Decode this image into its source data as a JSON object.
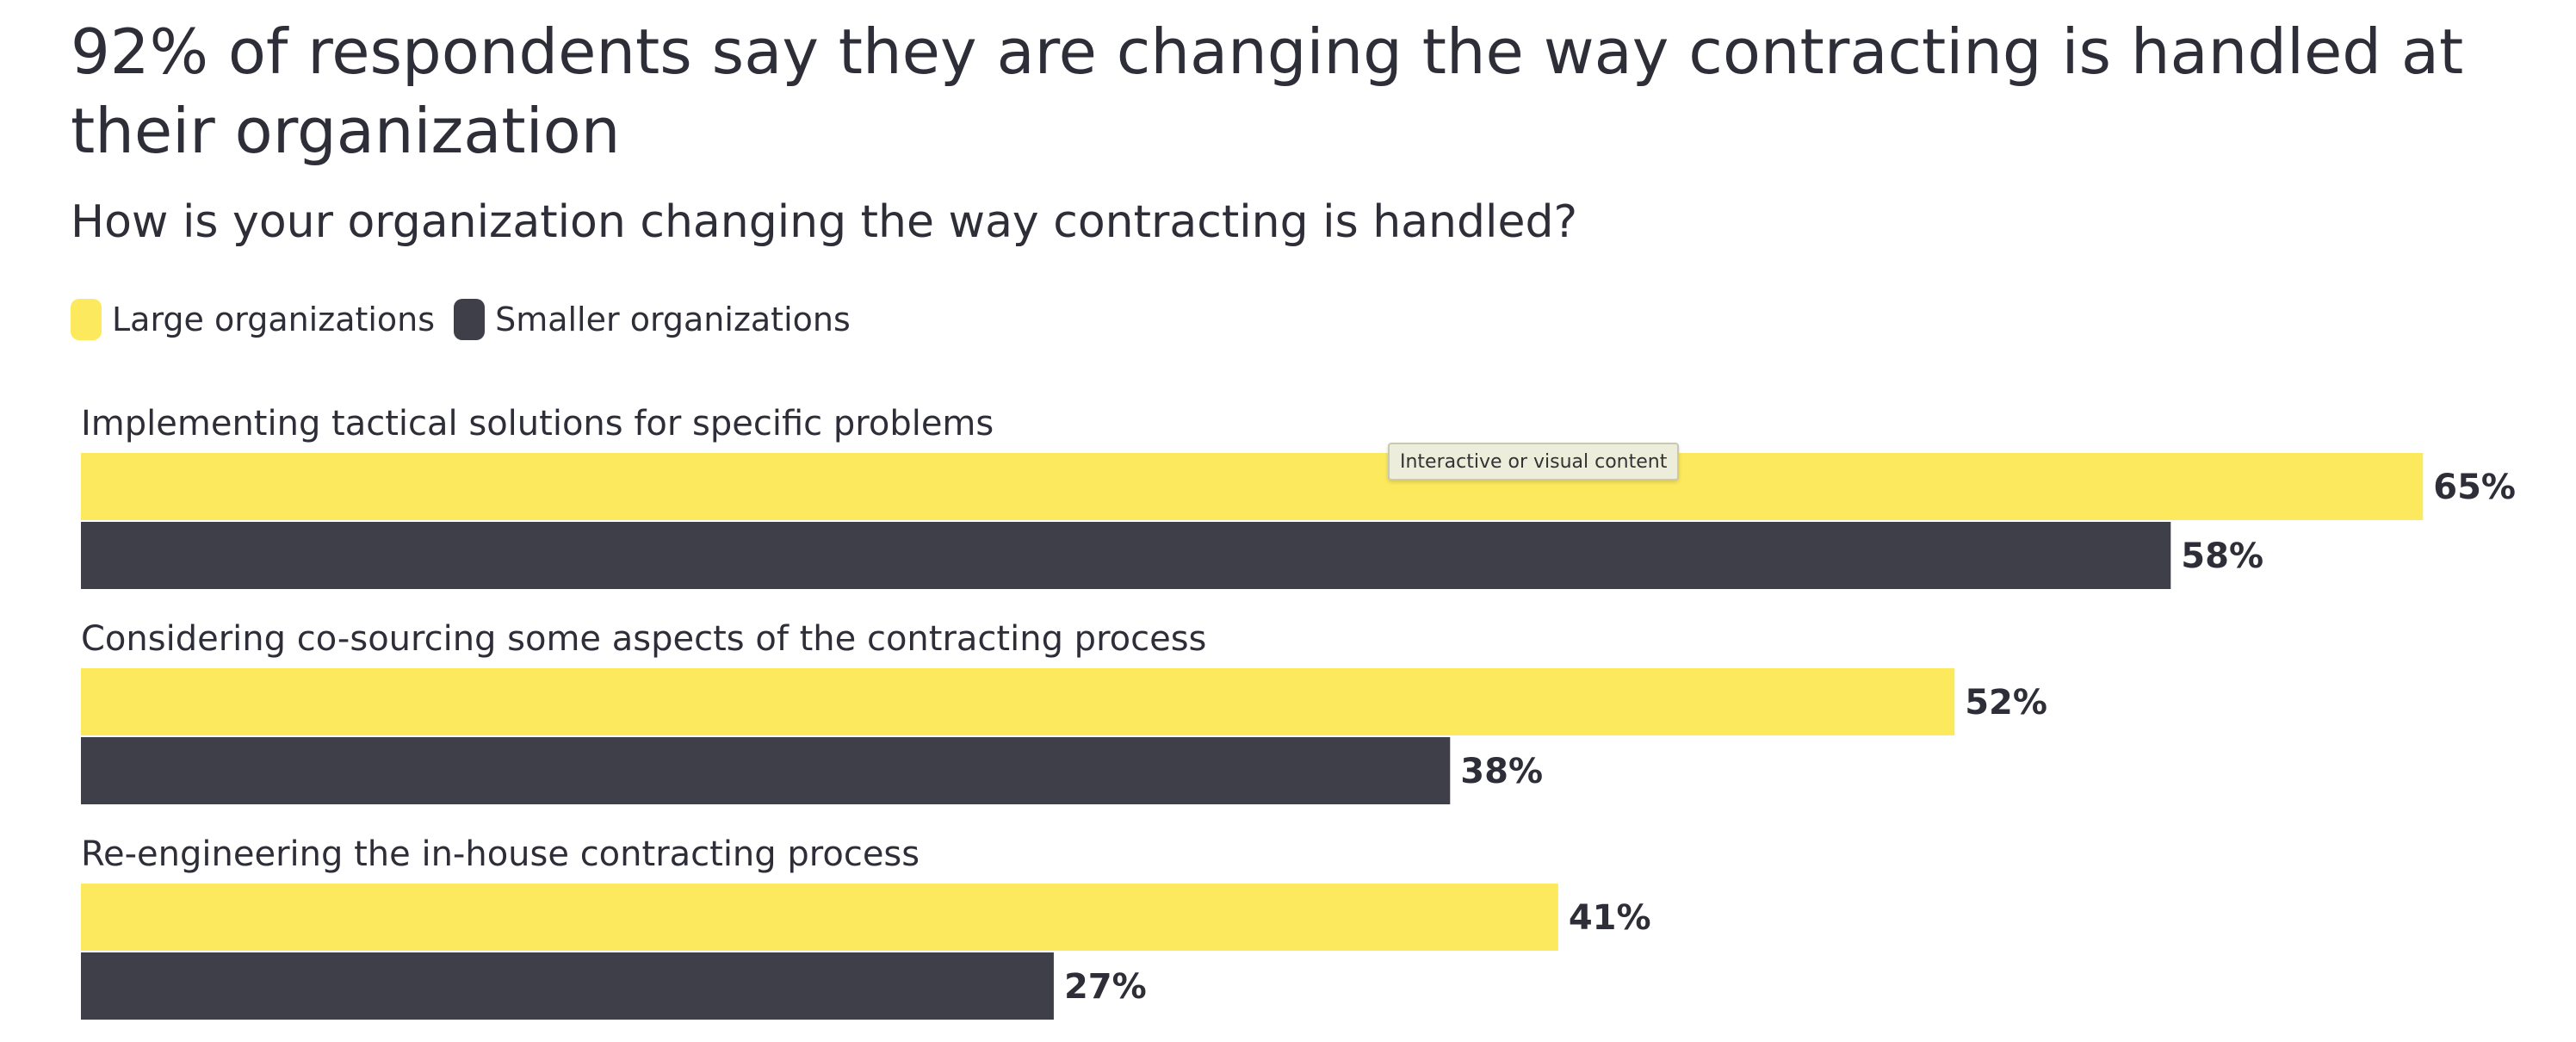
{
  "page": {
    "title": "92% of respondents say they are changing the way contracting is handled at their organization",
    "subtitle": "How is your organization changing the way contracting is handled?",
    "tooltip": "Interactive or visual content"
  },
  "colors": {
    "large": "#fce95e",
    "smaller": "#3f3f49",
    "text": "#2e2e38"
  },
  "legend": {
    "large_label": "Large organizations",
    "smaller_label": "Smaller organizations"
  },
  "chart_data": {
    "type": "bar",
    "orientation": "horizontal",
    "title": "92% of respondents say they are changing the way contracting is handled at their organization",
    "subtitle": "How is your organization changing the way contracting is handled?",
    "categories": [
      "Implementing tactical solutions for specific problems",
      "Considering co-sourcing some aspects of the contracting process",
      "Re-engineering the in-house contracting process"
    ],
    "series": [
      {
        "name": "Large organizations",
        "values": [
          65,
          52,
          41
        ],
        "labels": [
          "65%",
          "52%",
          "41%"
        ]
      },
      {
        "name": "Smaller organizations",
        "values": [
          58,
          38,
          27
        ],
        "labels": [
          "58%",
          "38%",
          "27%"
        ]
      }
    ],
    "unit": "%",
    "legend_position": "top-left",
    "grid": false
  }
}
